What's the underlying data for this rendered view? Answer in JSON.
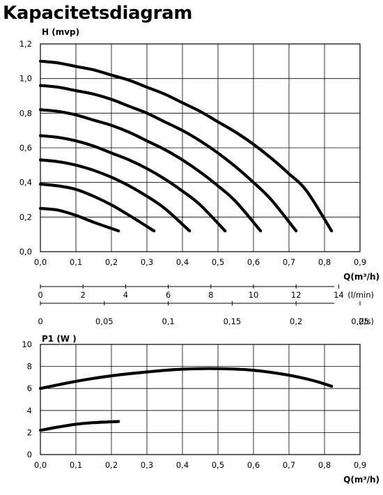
{
  "title": "Kapacitetsdiagram",
  "chart_data": [
    {
      "type": "line",
      "ylabel": "H (mvp)",
      "xlabel": "Q(m³/h)",
      "xlim": [
        0,
        0.9
      ],
      "ylim": [
        0,
        1.2
      ],
      "xticks": [
        0,
        0.1,
        0.2,
        0.3,
        0.4,
        0.5,
        0.6,
        0.7,
        0.8,
        0.9
      ],
      "yticks": [
        0,
        0.2,
        0.4,
        0.6,
        0.8,
        1.0,
        1.2
      ],
      "xtick_labels": [
        "0,0",
        "0,1",
        "0,2",
        "0,3",
        "0,4",
        "0,5",
        "0,6",
        "0,7",
        "0,8",
        "0,9"
      ],
      "ytick_labels": [
        "0,0",
        "0,2",
        "0,4",
        "0,6",
        "0,8",
        "1,0",
        "1,2"
      ],
      "grid": true,
      "series": [
        {
          "x": [
            0,
            0.05,
            0.1,
            0.15,
            0.22
          ],
          "y": [
            0.25,
            0.24,
            0.21,
            0.17,
            0.12
          ]
        },
        {
          "x": [
            0,
            0.05,
            0.1,
            0.15,
            0.2,
            0.25,
            0.32
          ],
          "y": [
            0.39,
            0.38,
            0.36,
            0.32,
            0.27,
            0.21,
            0.12
          ]
        },
        {
          "x": [
            0,
            0.05,
            0.1,
            0.15,
            0.2,
            0.25,
            0.3,
            0.35,
            0.42
          ],
          "y": [
            0.53,
            0.52,
            0.5,
            0.47,
            0.43,
            0.38,
            0.32,
            0.25,
            0.12
          ]
        },
        {
          "x": [
            0,
            0.05,
            0.1,
            0.15,
            0.2,
            0.25,
            0.3,
            0.35,
            0.4,
            0.45,
            0.52
          ],
          "y": [
            0.67,
            0.66,
            0.64,
            0.61,
            0.57,
            0.53,
            0.48,
            0.42,
            0.35,
            0.27,
            0.12
          ]
        },
        {
          "x": [
            0,
            0.05,
            0.1,
            0.15,
            0.2,
            0.25,
            0.3,
            0.35,
            0.4,
            0.45,
            0.5,
            0.55,
            0.62
          ],
          "y": [
            0.82,
            0.81,
            0.79,
            0.76,
            0.73,
            0.69,
            0.64,
            0.59,
            0.53,
            0.46,
            0.38,
            0.29,
            0.12
          ]
        },
        {
          "x": [
            0,
            0.05,
            0.1,
            0.15,
            0.2,
            0.25,
            0.3,
            0.35,
            0.4,
            0.45,
            0.5,
            0.55,
            0.6,
            0.65,
            0.72
          ],
          "y": [
            0.96,
            0.95,
            0.93,
            0.91,
            0.88,
            0.84,
            0.8,
            0.75,
            0.7,
            0.64,
            0.57,
            0.49,
            0.4,
            0.3,
            0.12
          ]
        },
        {
          "x": [
            0,
            0.05,
            0.1,
            0.15,
            0.2,
            0.25,
            0.3,
            0.35,
            0.4,
            0.45,
            0.5,
            0.55,
            0.6,
            0.65,
            0.7,
            0.75,
            0.82
          ],
          "y": [
            1.1,
            1.09,
            1.07,
            1.05,
            1.02,
            0.99,
            0.95,
            0.91,
            0.86,
            0.81,
            0.75,
            0.69,
            0.62,
            0.54,
            0.45,
            0.35,
            0.12
          ]
        }
      ],
      "secondary_scales": [
        {
          "unit": "(l/min)",
          "ticks": [
            0,
            2,
            4,
            6,
            8,
            10,
            12,
            14
          ],
          "labels": [
            "0",
            "2",
            "4",
            "6",
            "8",
            "10",
            "12",
            "14"
          ]
        },
        {
          "unit": "(l/s)",
          "ticks": [
            0,
            0.05,
            0.1,
            0.15,
            0.2,
            0.25
          ],
          "labels": [
            "0",
            "0,05",
            "0,1",
            "0,15",
            "0,2",
            "0,25"
          ]
        }
      ]
    },
    {
      "type": "line",
      "ylabel": "P1 (W )",
      "xlabel": "Q(m³/h)",
      "xlim": [
        0,
        0.9
      ],
      "ylim": [
        0,
        10
      ],
      "xticks": [
        0,
        0.1,
        0.2,
        0.3,
        0.4,
        0.5,
        0.6,
        0.7,
        0.8,
        0.9
      ],
      "yticks": [
        0,
        2,
        4,
        6,
        8,
        10
      ],
      "xtick_labels": [
        "0,0",
        "0,1",
        "0,2",
        "0,3",
        "0,4",
        "0,5",
        "0,6",
        "0,7",
        "0,8",
        "0,9"
      ],
      "ytick_labels": [
        "0",
        "2",
        "4",
        "6",
        "8",
        "10"
      ],
      "grid": true,
      "series": [
        {
          "x": [
            0,
            0.05,
            0.1,
            0.15,
            0.22
          ],
          "y": [
            2.2,
            2.5,
            2.75,
            2.9,
            3.0
          ]
        },
        {
          "x": [
            0,
            0.1,
            0.2,
            0.3,
            0.4,
            0.5,
            0.6,
            0.7,
            0.77,
            0.82
          ],
          "y": [
            6.0,
            6.65,
            7.15,
            7.5,
            7.75,
            7.8,
            7.65,
            7.2,
            6.7,
            6.2
          ]
        }
      ]
    }
  ]
}
